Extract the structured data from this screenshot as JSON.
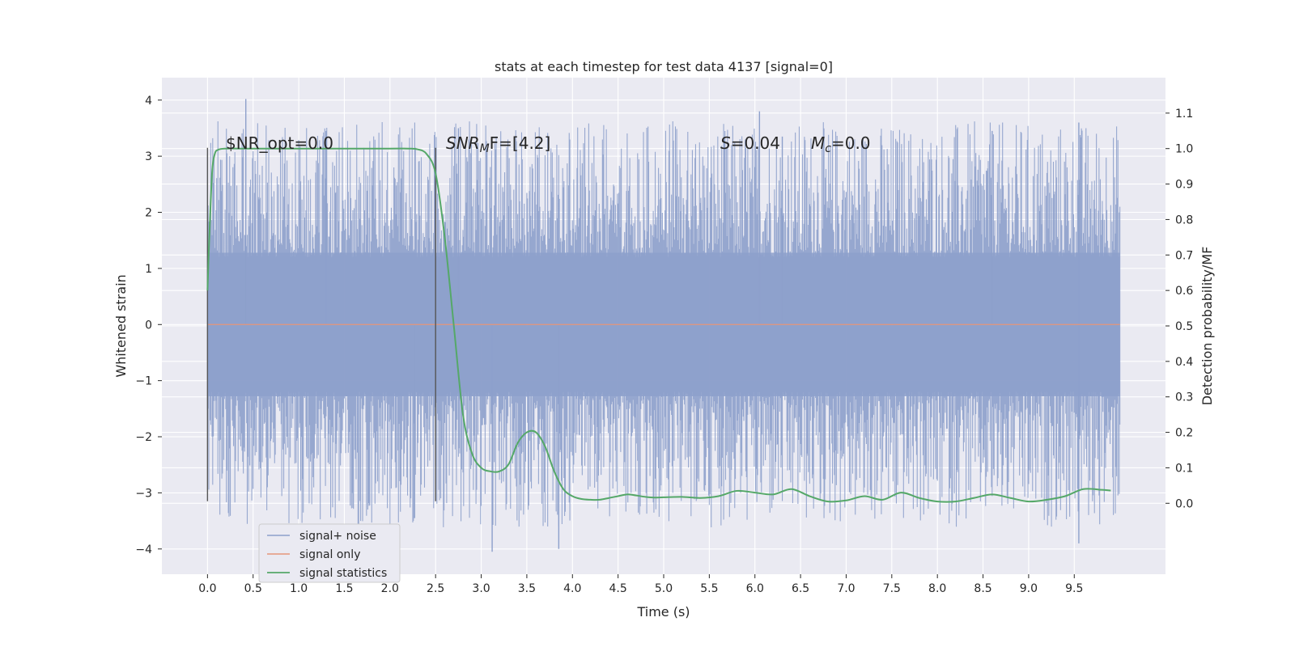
{
  "chart_data": {
    "type": "line",
    "title": "stats at each timestep for test data 4137 [signal=0]",
    "xlabel": "Time (s)",
    "ylabel_left": "Whitened strain",
    "ylabel_right": "Detection probability/MF",
    "xlim": [
      -0.5,
      10.5
    ],
    "ylim_left": [
      -4.45,
      4.4
    ],
    "ylim_right": [
      -0.2,
      1.2
    ],
    "x_ticks": [
      "0.0",
      "0.5",
      "1.0",
      "1.5",
      "2.0",
      "2.5",
      "3.0",
      "3.5",
      "4.0",
      "4.5",
      "5.0",
      "5.5",
      "6.0",
      "6.5",
      "7.0",
      "7.5",
      "8.0",
      "8.5",
      "9.0",
      "9.5"
    ],
    "y_left_ticks": [
      "4",
      "3",
      "2",
      "1",
      "0",
      "−1",
      "−2",
      "−3",
      "−4"
    ],
    "y_right_ticks": [
      "1.1",
      "1.0",
      "0.9",
      "0.8",
      "0.7",
      "0.6",
      "0.5",
      "0.4",
      "0.3",
      "0.2",
      "0.1",
      "0.0"
    ],
    "grid": true,
    "legend_placement": "lower-left",
    "annotations": {
      "snr_opt": "$NR_opt=0.0",
      "snr_mf_main": "SNR",
      "snr_mf_sub": "M",
      "snr_mf_rest": "F=[4.2]",
      "s_main": "S",
      "s_rest": "=0.04",
      "mc_main": "M",
      "mc_sub": "c",
      "mc_rest": "=0.0"
    },
    "vertical_markers": [
      0.0,
      2.5
    ],
    "series": [
      {
        "name": "signal+ noise",
        "color": "#8da0cb",
        "axis": "left",
        "x_range": [
          0.0,
          10.0
        ],
        "envelope": {
          "upper_typical": 2.3,
          "lower_typical": -2.3,
          "upper_peak": 4.05,
          "lower_peak": -4.05
        },
        "peaks": [
          [
            0.42,
            4.02
          ],
          [
            3.12,
            -4.05
          ],
          [
            3.85,
            -4.0
          ],
          [
            6.05,
            3.8
          ],
          [
            9.55,
            -3.9
          ],
          [
            9.55,
            3.6
          ],
          [
            1.3,
            3.45
          ],
          [
            2.27,
            -3.45
          ],
          [
            2.75,
            3.5
          ],
          [
            8.6,
            3.45
          ],
          [
            6.3,
            3.35
          ]
        ]
      },
      {
        "name": "signal only",
        "color": "#e5967a",
        "axis": "left",
        "x": [
          0.0,
          10.0
        ],
        "y": [
          0.0,
          0.0
        ]
      },
      {
        "name": "signal statistics",
        "color": "#55a868",
        "axis": "right",
        "x": [
          0.0,
          0.02,
          0.05,
          0.08,
          0.12,
          0.2,
          0.35,
          0.6,
          1.0,
          1.5,
          2.0,
          2.2,
          2.3,
          2.4,
          2.5,
          2.6,
          2.7,
          2.8,
          2.9,
          3.0,
          3.1,
          3.2,
          3.3,
          3.4,
          3.5,
          3.6,
          3.7,
          3.8,
          3.9,
          4.0,
          4.1,
          4.2,
          4.3,
          4.4,
          4.5,
          4.6,
          4.7,
          4.8,
          4.9,
          5.0,
          5.2,
          5.4,
          5.6,
          5.8,
          6.0,
          6.2,
          6.4,
          6.6,
          6.8,
          7.0,
          7.2,
          7.4,
          7.6,
          7.8,
          8.0,
          8.2,
          8.4,
          8.6,
          8.8,
          9.0,
          9.2,
          9.4,
          9.6,
          9.8,
          9.9
        ],
        "y": [
          0.6,
          0.75,
          0.93,
          0.985,
          0.997,
          1.0,
          1.0,
          1.0,
          1.0,
          1.0,
          1.0,
          1.0,
          0.998,
          0.985,
          0.93,
          0.75,
          0.5,
          0.25,
          0.14,
          0.1,
          0.09,
          0.09,
          0.11,
          0.17,
          0.2,
          0.2,
          0.16,
          0.09,
          0.04,
          0.02,
          0.012,
          0.01,
          0.01,
          0.015,
          0.02,
          0.025,
          0.022,
          0.018,
          0.016,
          0.017,
          0.018,
          0.015,
          0.02,
          0.035,
          0.03,
          0.025,
          0.04,
          0.02,
          0.005,
          0.008,
          0.02,
          0.01,
          0.03,
          0.015,
          0.005,
          0.005,
          0.015,
          0.025,
          0.015,
          0.005,
          0.01,
          0.02,
          0.04,
          0.038,
          0.036
        ]
      }
    ]
  }
}
